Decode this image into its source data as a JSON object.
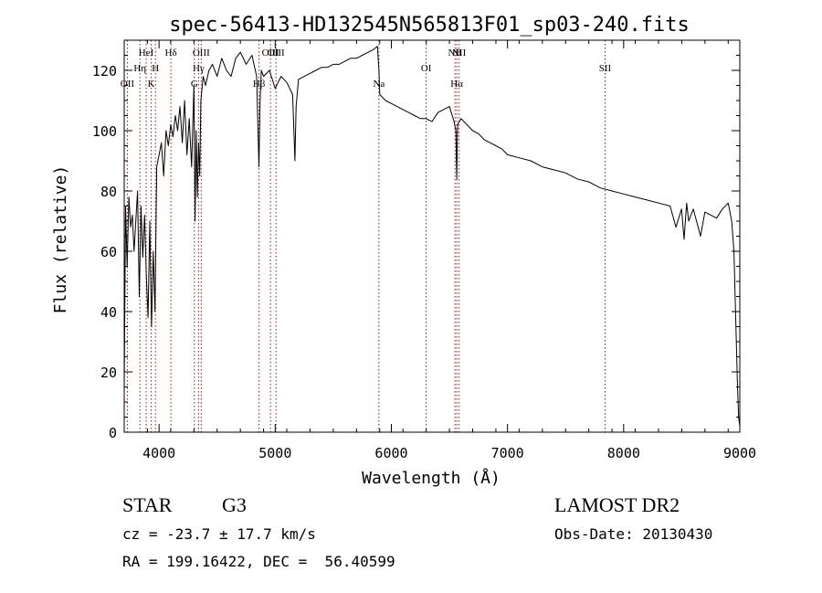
{
  "chart_data": {
    "type": "line",
    "title": "spec-56413-HD132545N565813F01_sp03-240.fits",
    "xlabel": "Wavelength (Å)",
    "ylabel": "Flux (relative)",
    "xlim": [
      3700,
      9000
    ],
    "ylim": [
      0,
      130
    ],
    "x_ticks": [
      4000,
      5000,
      6000,
      7000,
      8000,
      9000
    ],
    "x_tick_labels": [
      "4000",
      "5000",
      "6000",
      "7000",
      "8000",
      "9000"
    ],
    "y_ticks": [
      0,
      20,
      40,
      60,
      80,
      100,
      120
    ],
    "y_tick_labels": [
      "0",
      "20",
      "40",
      "60",
      "80",
      "100",
      "120"
    ],
    "x_minor_step": 200,
    "y_minor_step": 5,
    "grid": false,
    "legend": "none",
    "line_color": "#000000",
    "marker_color": "#8b1a1a",
    "series": [
      {
        "x": [
          3700,
          3712,
          3725,
          3740,
          3755,
          3770,
          3785,
          3800,
          3815,
          3830,
          3845,
          3860,
          3875,
          3890,
          3905,
          3920,
          3935,
          3950,
          3965,
          3980,
          4000,
          4020,
          4040,
          4060,
          4080,
          4100,
          4120,
          4140,
          4160,
          4180,
          4200,
          4220,
          4240,
          4260,
          4280,
          4300,
          4310,
          4320,
          4330,
          4340,
          4350,
          4360,
          4380,
          4400,
          4430,
          4460,
          4500,
          4540,
          4580,
          4620,
          4660,
          4700,
          4750,
          4800,
          4840,
          4860,
          4870,
          4880,
          4900,
          4950,
          5000,
          5050,
          5100,
          5150,
          5170,
          5180,
          5200,
          5250,
          5300,
          5350,
          5400,
          5450,
          5500,
          5550,
          5600,
          5650,
          5700,
          5750,
          5800,
          5850,
          5880,
          5893,
          5900,
          5950,
          6000,
          6050,
          6100,
          6150,
          6200,
          6250,
          6300,
          6350,
          6400,
          6450,
          6500,
          6540,
          6555,
          6563,
          6570,
          6600,
          6650,
          6700,
          6750,
          6800,
          6850,
          6900,
          6950,
          7000,
          7100,
          7200,
          7300,
          7400,
          7500,
          7600,
          7700,
          7800,
          7900,
          8000,
          8100,
          8200,
          8300,
          8400,
          8450,
          8498,
          8520,
          8542,
          8560,
          8600,
          8662,
          8700,
          8750,
          8800,
          8850,
          8900,
          8930,
          8950,
          8970,
          8980,
          8990,
          9000
        ],
        "y": [
          15,
          75,
          55,
          78,
          68,
          72,
          60,
          70,
          80,
          45,
          75,
          58,
          72,
          52,
          38,
          70,
          35,
          60,
          40,
          88,
          92,
          96,
          85,
          100,
          95,
          102,
          98,
          105,
          100,
          108,
          96,
          110,
          92,
          104,
          88,
          115,
          70,
          100,
          78,
          96,
          85,
          110,
          118,
          115,
          120,
          122,
          118,
          124,
          120,
          118,
          124,
          126,
          122,
          125,
          118,
          88,
          110,
          120,
          118,
          120,
          114,
          118,
          116,
          112,
          90,
          108,
          117,
          118,
          119,
          120,
          121,
          121,
          122,
          122,
          123,
          124,
          124,
          125,
          126,
          127,
          128,
          120,
          112,
          110,
          109,
          108,
          107,
          106,
          105,
          104,
          104,
          103,
          106,
          107,
          108,
          103,
          100,
          84,
          102,
          104,
          102,
          100,
          99,
          97,
          96,
          95,
          94,
          92,
          91,
          90,
          88,
          87,
          86,
          84,
          83,
          81,
          80,
          79,
          78,
          77,
          76,
          75,
          68,
          74,
          64,
          76,
          70,
          74,
          65,
          73,
          72,
          71,
          74,
          76,
          70,
          60,
          30,
          15,
          5,
          2
        ]
      }
    ],
    "line_markers": [
      {
        "x": 3727,
        "label": "OII",
        "row": 3
      },
      {
        "x": 3835,
        "label": "Hη",
        "row": 2
      },
      {
        "x": 3889,
        "label": "HeI",
        "row": 1
      },
      {
        "x": 3933,
        "label": "K",
        "row": 3
      },
      {
        "x": 3969,
        "label": "H",
        "row": 2
      },
      {
        "x": 4102,
        "label": "Hδ",
        "row": 1
      },
      {
        "x": 4304,
        "label": "G",
        "row": 3
      },
      {
        "x": 4340,
        "label": "Hγ",
        "row": 2
      },
      {
        "x": 4363,
        "label": "OIII",
        "row": 1
      },
      {
        "x": 4861,
        "label": "Hβ",
        "row": 3
      },
      {
        "x": 4959,
        "label": "OIII",
        "row": 1
      },
      {
        "x": 5007,
        "label": "OIII",
        "row": 1
      },
      {
        "x": 5893,
        "label": "Na",
        "row": 3
      },
      {
        "x": 6300,
        "label": "OI",
        "row": 2
      },
      {
        "x": 6548,
        "label": "NII",
        "row": 1
      },
      {
        "x": 6563,
        "label": "Hα",
        "row": 3
      },
      {
        "x": 6583,
        "label": "NII",
        "row": 1
      },
      {
        "x": 7840,
        "label": "SII",
        "row": 2
      }
    ]
  },
  "info": {
    "object_class": "STAR",
    "subclass": "G3",
    "release": "LAMOST DR2",
    "redshift": "cz = -23.7 ± 17.7 km/s",
    "obs_date": "Obs-Date: 20130430",
    "coords": "RA = 199.16422, DEC =  56.40599"
  }
}
